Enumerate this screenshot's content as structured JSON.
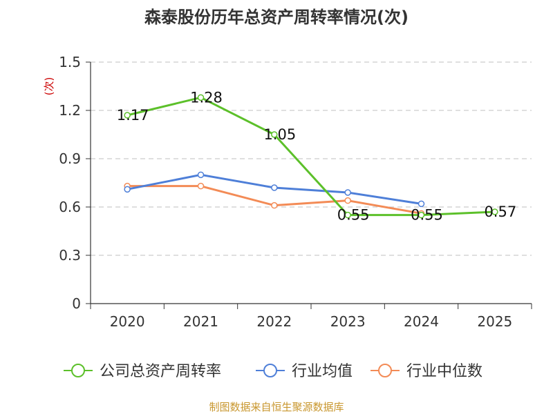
{
  "chart_data": {
    "type": "line",
    "title": "森泰股份历年总资产周转率情况(次)",
    "ylabel": "(次)",
    "categories": [
      "2020",
      "2021",
      "2022",
      "2023",
      "2024",
      "2025"
    ],
    "ylim": [
      0,
      1.5
    ],
    "yticks": [
      "0",
      "0.3",
      "0.6",
      "0.9",
      "1.2",
      "1.5"
    ],
    "grid": true,
    "legend_position": "bottom",
    "series": [
      {
        "name": "公司总资产周转率",
        "color": "#5cc02a",
        "values": [
          1.17,
          1.28,
          1.05,
          0.55,
          0.55,
          0.57
        ],
        "labels": [
          "1.17",
          "1.28",
          "1.05",
          "0.55",
          "0.55",
          "0.57"
        ]
      },
      {
        "name": "行业均值",
        "color": "#4e7fd8",
        "values": [
          0.71,
          0.8,
          0.72,
          0.69,
          0.62,
          null
        ]
      },
      {
        "name": "行业中位数",
        "color": "#f38b56",
        "values": [
          0.73,
          0.73,
          0.61,
          0.64,
          0.56,
          null
        ]
      }
    ],
    "source": "制图数据来自恒生聚源数据库"
  }
}
